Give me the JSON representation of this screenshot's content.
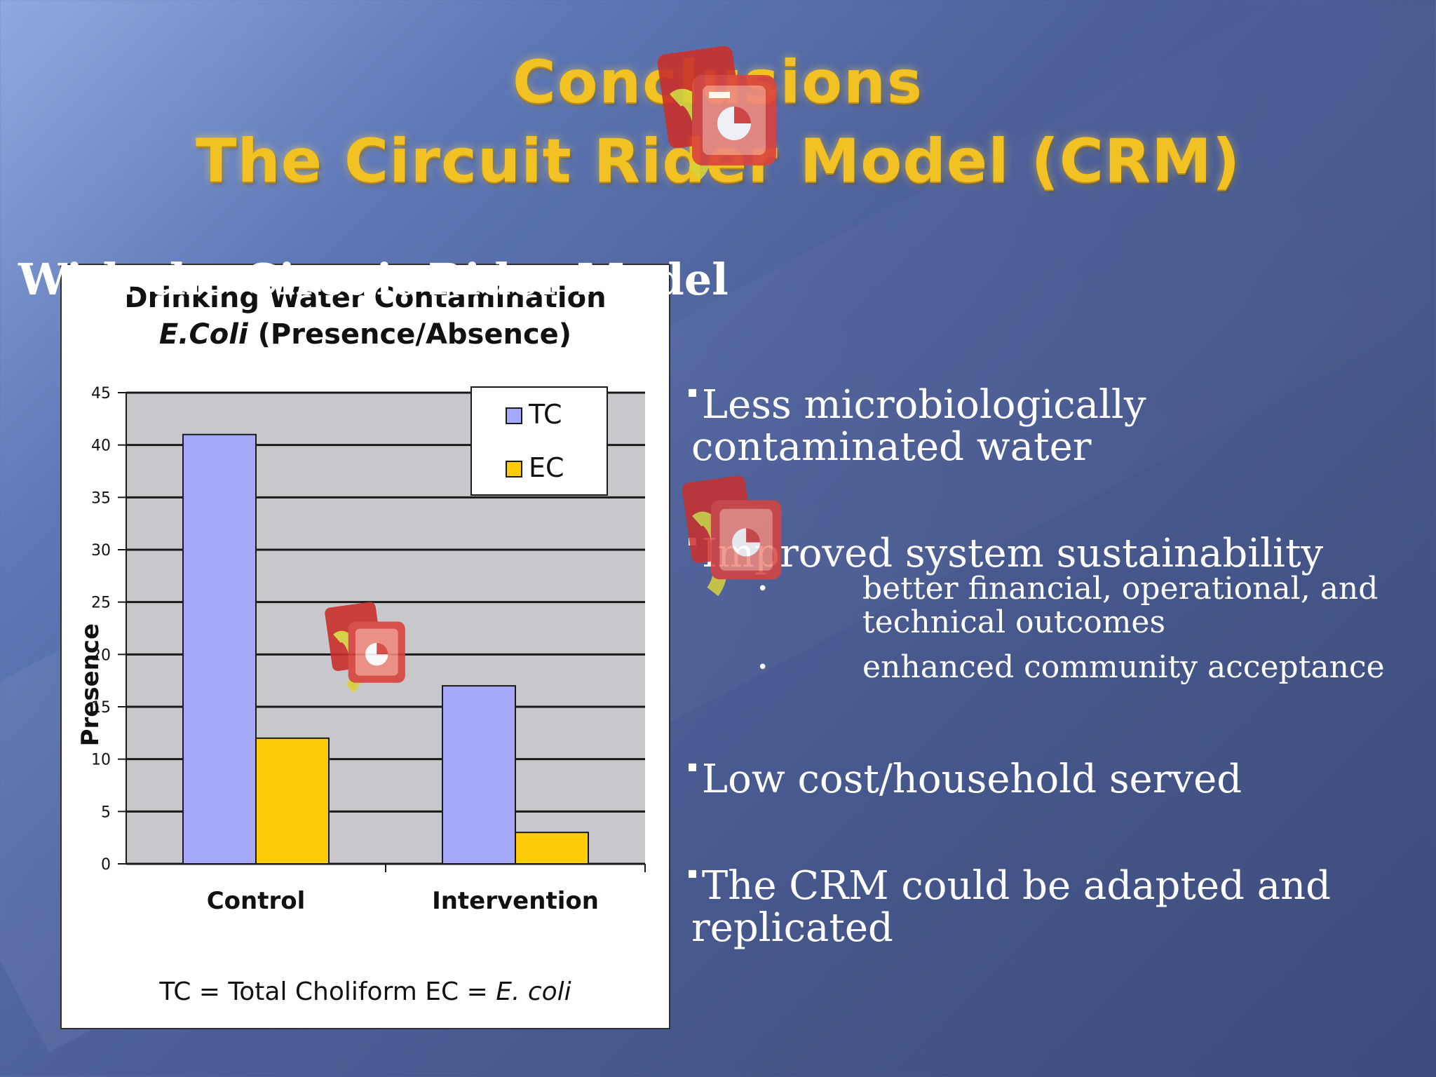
{
  "slide": {
    "title_line1": "Conclusions",
    "title_line2": "The Circuit Rider Model (CRM)",
    "heading": "With  the Circuit Rider Model",
    "bullets": [
      {
        "lines": [
          "Less microbiologically",
          "contaminated water"
        ]
      },
      {
        "lines": [
          "Improved system sustainability"
        ]
      },
      {
        "lines": [
          "Low cost/household served"
        ]
      },
      {
        "lines": [
          "The CRM could be adapted and",
          "replicated"
        ]
      }
    ],
    "sub_bullets": [
      "better financial, operational, and technical outcomes",
      "enhanced community acceptance"
    ],
    "icons": [
      "presentation-clipart-icon",
      "presentation-clipart-icon",
      "presentation-clipart-icon"
    ]
  },
  "chart_data": {
    "type": "bar",
    "title_line1": "Drinking Water Contamination",
    "title_line2_italic": "E.Coli",
    "title_line2_rest": " (Presence/Absence)",
    "categories": [
      "Control",
      "Intervention"
    ],
    "series": [
      {
        "name": "TC",
        "values": [
          41,
          17
        ],
        "color": "#a6a8fa"
      },
      {
        "name": "EC",
        "values": [
          12,
          3
        ],
        "color": "#ffcc0a"
      }
    ],
    "ylabel": "Presence",
    "xlabel": "",
    "ylim": [
      0,
      45
    ],
    "yticks": [
      0,
      5,
      10,
      15,
      20,
      25,
      30,
      35,
      40,
      45
    ],
    "plot_background": "#c8c8cc",
    "grid": true,
    "legend_position": "top-right",
    "footnote_prefix": "TC = Total Choliform EC = ",
    "footnote_italic": "E. coli"
  }
}
